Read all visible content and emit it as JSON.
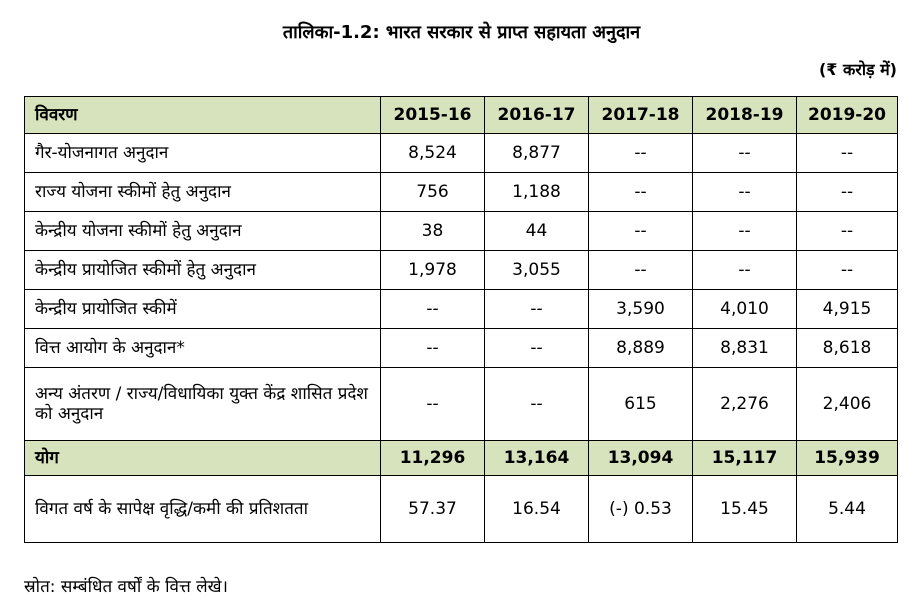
{
  "title": "तालिका-1.2: भारत सरकार से प्राप्त सहायता अनुदान",
  "unit": "(₹ करोड़ में)",
  "table": {
    "header_label": "विवरण",
    "years": [
      "2015-16",
      "2016-17",
      "2017-18",
      "2018-19",
      "2019-20"
    ],
    "rows": [
      {
        "label": "गैर-योजनागत अनुदान",
        "values": [
          "8,524",
          "8,877",
          "--",
          "--",
          "--"
        ]
      },
      {
        "label": "राज्य योजना स्कीमों हेतु अनुदान",
        "values": [
          "756",
          "1,188",
          "--",
          "--",
          "--"
        ]
      },
      {
        "label": "केन्द्रीय योजना स्कीमों हेतु अनुदान",
        "values": [
          "38",
          "44",
          "--",
          "--",
          "--"
        ]
      },
      {
        "label": "केन्द्रीय प्रायोजित स्कीमों हेतु अनुदान",
        "values": [
          "1,978",
          "3,055",
          "--",
          "--",
          "--"
        ]
      },
      {
        "label": "केन्द्रीय प्रायोजित स्कीमें",
        "values": [
          "--",
          "--",
          "3,590",
          "4,010",
          "4,915"
        ]
      },
      {
        "label": "वित्त आयोग के अनुदान*",
        "values": [
          "--",
          "--",
          "8,889",
          "8,831",
          "8,618"
        ]
      },
      {
        "label": "अन्य अंतरण / राज्य/विधायिका युक्त केंद्र शासित प्रदेश को अनुदान",
        "values": [
          "--",
          "--",
          "615",
          "2,276",
          "2,406"
        ]
      }
    ],
    "total": {
      "label": "योग",
      "values": [
        "11,296",
        "13,164",
        "13,094",
        "15,117",
        "15,939"
      ]
    },
    "growth": {
      "label": "विगत वर्ष के सापेक्ष वृद्धि/कमी की प्रतिशतता",
      "values": [
        "57.37",
        "16.54",
        "(-)  0.53",
        "15.45",
        "5.44"
      ]
    }
  },
  "source": "स्रोत: सम्बंधित वर्षों के वित्त लेखे।",
  "colors": {
    "header_bg": "#d6e3bc",
    "total_bg": "#d6e3bc",
    "border": "#000000"
  }
}
